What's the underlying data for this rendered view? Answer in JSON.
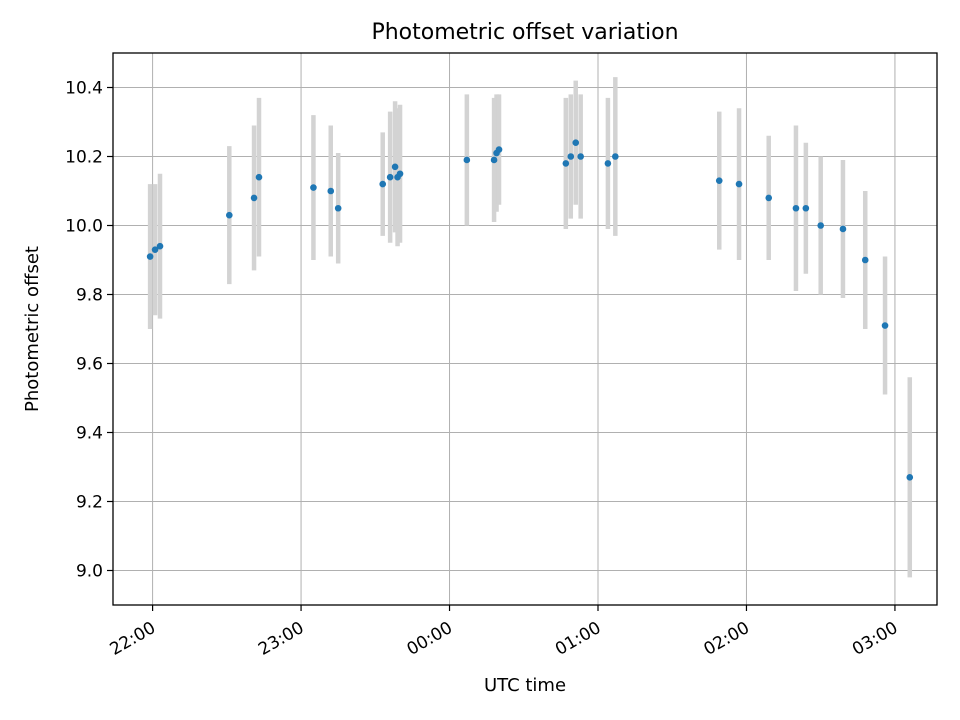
{
  "chart_data": {
    "type": "scatter",
    "title": "Photometric offset variation",
    "xlabel": "UTC time",
    "ylabel": "Photometric offset",
    "xlim": [
      "21:44",
      "03:17"
    ],
    "ylim": [
      8.9,
      10.5
    ],
    "x_ticks": [
      "22:00",
      "23:00",
      "00:00",
      "01:00",
      "02:00",
      "03:00"
    ],
    "y_ticks": [
      "9.0",
      "9.2",
      "9.4",
      "9.6",
      "9.8",
      "10.0",
      "10.2",
      "10.4"
    ],
    "grid": true,
    "colors": {
      "points": "#1f77b4",
      "errorbars": "#d3d3d3",
      "grid": "#b0b0b0"
    },
    "series": [
      {
        "points": [
          {
            "x": "21:59",
            "y": 9.91,
            "err": 0.21
          },
          {
            "x": "22:01",
            "y": 9.93,
            "err": 0.19
          },
          {
            "x": "22:03",
            "y": 9.94,
            "err": 0.21
          },
          {
            "x": "22:31",
            "y": 10.03,
            "err": 0.2
          },
          {
            "x": "22:41",
            "y": 10.08,
            "err": 0.21
          },
          {
            "x": "22:43",
            "y": 10.14,
            "err": 0.23
          },
          {
            "x": "23:05",
            "y": 10.11,
            "err": 0.21
          },
          {
            "x": "23:12",
            "y": 10.1,
            "err": 0.19
          },
          {
            "x": "23:15",
            "y": 10.05,
            "err": 0.16
          },
          {
            "x": "23:33",
            "y": 10.12,
            "err": 0.15
          },
          {
            "x": "23:36",
            "y": 10.14,
            "err": 0.19
          },
          {
            "x": "23:38",
            "y": 10.17,
            "err": 0.19
          },
          {
            "x": "23:39",
            "y": 10.14,
            "err": 0.2
          },
          {
            "x": "23:40",
            "y": 10.15,
            "err": 0.2
          },
          {
            "x": "00:07",
            "y": 10.19,
            "err": 0.19
          },
          {
            "x": "00:18",
            "y": 10.19,
            "err": 0.18
          },
          {
            "x": "00:19",
            "y": 10.21,
            "err": 0.17
          },
          {
            "x": "00:20",
            "y": 10.22,
            "err": 0.16
          },
          {
            "x": "00:47",
            "y": 10.18,
            "err": 0.19
          },
          {
            "x": "00:49",
            "y": 10.2,
            "err": 0.18
          },
          {
            "x": "00:51",
            "y": 10.24,
            "err": 0.18
          },
          {
            "x": "00:53",
            "y": 10.2,
            "err": 0.18
          },
          {
            "x": "01:04",
            "y": 10.18,
            "err": 0.19
          },
          {
            "x": "01:07",
            "y": 10.2,
            "err": 0.23
          },
          {
            "x": "01:49",
            "y": 10.13,
            "err": 0.2
          },
          {
            "x": "01:57",
            "y": 10.12,
            "err": 0.22
          },
          {
            "x": "02:09",
            "y": 10.08,
            "err": 0.18
          },
          {
            "x": "02:20",
            "y": 10.05,
            "err": 0.24
          },
          {
            "x": "02:24",
            "y": 10.05,
            "err": 0.19
          },
          {
            "x": "02:30",
            "y": 10.0,
            "err": 0.2
          },
          {
            "x": "02:39",
            "y": 9.99,
            "err": 0.2
          },
          {
            "x": "02:48",
            "y": 9.9,
            "err": 0.2
          },
          {
            "x": "02:56",
            "y": 9.71,
            "err": 0.2
          },
          {
            "x": "03:06",
            "y": 9.27,
            "err": 0.29
          }
        ]
      }
    ]
  }
}
